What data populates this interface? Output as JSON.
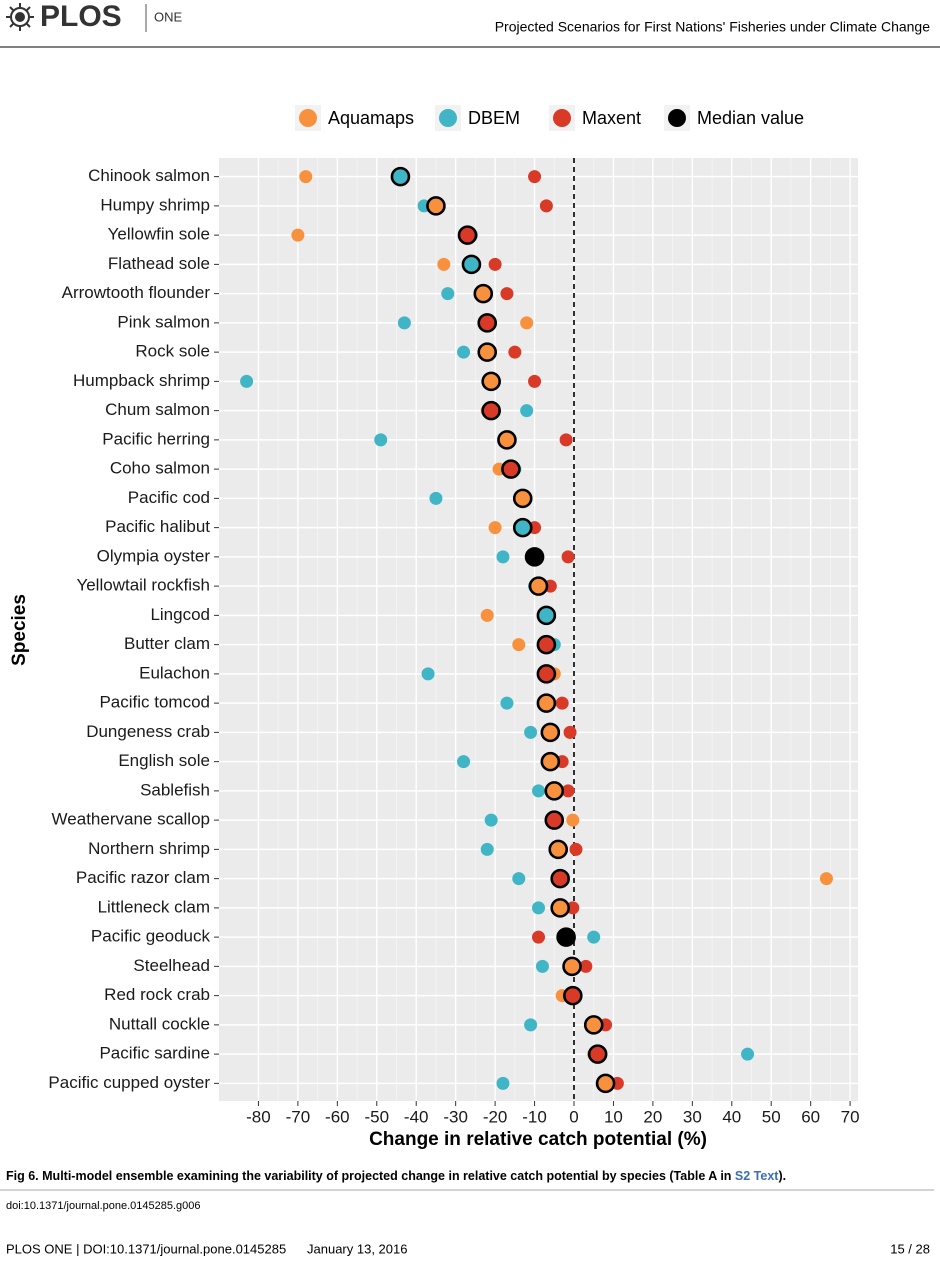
{
  "header": {
    "logo": "PLOS",
    "journal": "ONE",
    "title": "Projected Scenarios for First Nations' Fisheries under Climate Change"
  },
  "chart_data": {
    "type": "dot",
    "x_label": "Change in relative catch potential (%)",
    "y_label": "Species",
    "categories": [
      "Chinook salmon",
      "Humpy shrimp",
      "Yellowfin sole",
      "Flathead sole",
      "Arrowtooth flounder",
      "Pink salmon",
      "Rock sole",
      "Humpback shrimp",
      "Chum salmon",
      "Pacific herring",
      "Coho salmon",
      "Pacific cod",
      "Pacific halibut",
      "Olympia oyster",
      "Yellowtail rockfish",
      "Lingcod",
      "Butter clam",
      "Eulachon",
      "Pacific tomcod",
      "Dungeness crab",
      "English sole",
      "Sablefish",
      "Weathervane scallop",
      "Northern shrimp",
      "Pacific razor clam",
      "Littleneck clam",
      "Pacific geoduck",
      "Steelhead",
      "Red rock crab",
      "Nuttall cockle",
      "Pacific sardine",
      "Pacific cupped oyster"
    ],
    "series": [
      {
        "name": "Aquamaps",
        "color": "#f7913d",
        "values": [
          -68,
          -35,
          -70,
          -33,
          -23,
          -12,
          -22,
          -21,
          -22,
          -17,
          -19,
          -13,
          -20,
          null,
          -9,
          -22,
          -14,
          -5,
          -7,
          -6,
          -6,
          -5,
          -0.3,
          -4,
          64,
          -3.5,
          null,
          -0.5,
          -3,
          5,
          5,
          8
        ]
      },
      {
        "name": "DBEM",
        "color": "#3fb5c5",
        "values": [
          -44,
          -38,
          -26,
          -26,
          -32,
          -43,
          -28,
          -83,
          -12,
          -49,
          -15,
          -35,
          -13,
          -18,
          -10,
          -7,
          -5,
          -37,
          -17,
          -11,
          -28,
          -9,
          -21,
          -22,
          -14,
          -9,
          5,
          -8,
          0,
          -11,
          44,
          -18
        ]
      },
      {
        "name": "Maxent",
        "color": "#d93a28",
        "values": [
          -10,
          -7,
          -27,
          -20,
          -17,
          -22,
          -15,
          -10,
          -21,
          -2,
          -16,
          -13,
          -10,
          -1.5,
          -6,
          -7,
          -7,
          -7,
          -3,
          -1,
          -3,
          -1.5,
          -5,
          0.5,
          -3.5,
          -0.3,
          -9,
          3,
          -0.3,
          8,
          6,
          11
        ]
      },
      {
        "name": "Median value",
        "color": "#000000",
        "values": [
          -44,
          -35,
          -27,
          -26,
          -23,
          -22,
          -22,
          -21,
          -21,
          -17,
          -16,
          -13,
          -13,
          -10,
          -9,
          -7,
          -7,
          -7,
          -7,
          -6,
          -6,
          -5,
          -5,
          -4,
          -3.5,
          -3.5,
          -2,
          -0.5,
          -0.3,
          5,
          6,
          8
        ]
      }
    ],
    "xlim": [
      -90,
      72
    ],
    "xticks": [
      -80,
      -70,
      -60,
      -50,
      -40,
      -30,
      -20,
      -10,
      0,
      10,
      20,
      30,
      40,
      50,
      60,
      70
    ],
    "vline": 0,
    "grid": true,
    "legend": "top"
  },
  "caption": {
    "label": "Fig 6.",
    "text": "Multi-model ensemble examining the variability of projected change in relative catch potential by species (Table A in ",
    "link": "S2 Text",
    "end": ")."
  },
  "doi": "doi:10.1371/journal.pone.0145285.g006",
  "footer": {
    "left": "PLOS ONE | DOI:10.1371/journal.pone.0145285",
    "date": "January 13, 2016",
    "page": "15 / 28"
  }
}
